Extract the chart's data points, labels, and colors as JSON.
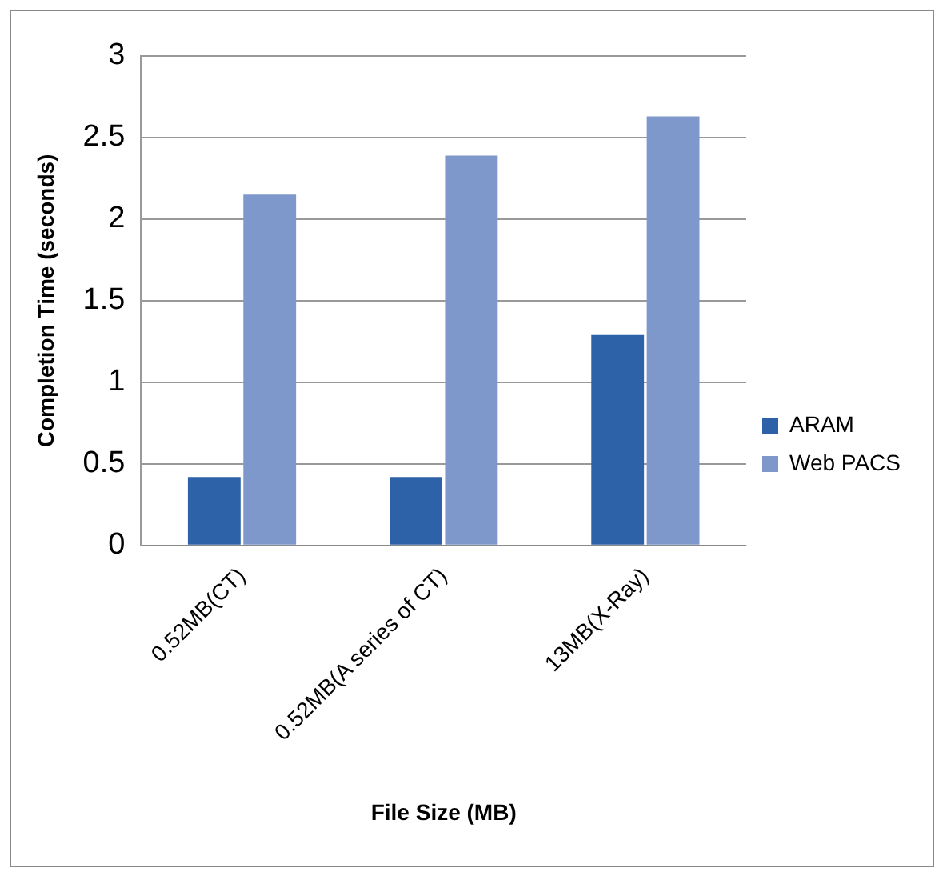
{
  "chart_data": {
    "type": "bar",
    "xlabel": "File Size (MB)",
    "ylabel": "Completion Time (seconds)",
    "categories": [
      "0.52MB(CT)",
      "0.52MB(A series of CT)",
      "13MB(X-Ray)"
    ],
    "series": [
      {
        "name": "ARAM",
        "color": "#2e62a8",
        "values": [
          0.42,
          0.42,
          1.29
        ]
      },
      {
        "name": "Web PACS",
        "color": "#7f98cc",
        "values": [
          2.15,
          2.39,
          2.63
        ]
      }
    ],
    "ylim": [
      0,
      3
    ],
    "yticks": [
      0,
      0.5,
      1,
      1.5,
      2,
      2.5,
      3
    ],
    "grid": "y",
    "legend": "right"
  }
}
